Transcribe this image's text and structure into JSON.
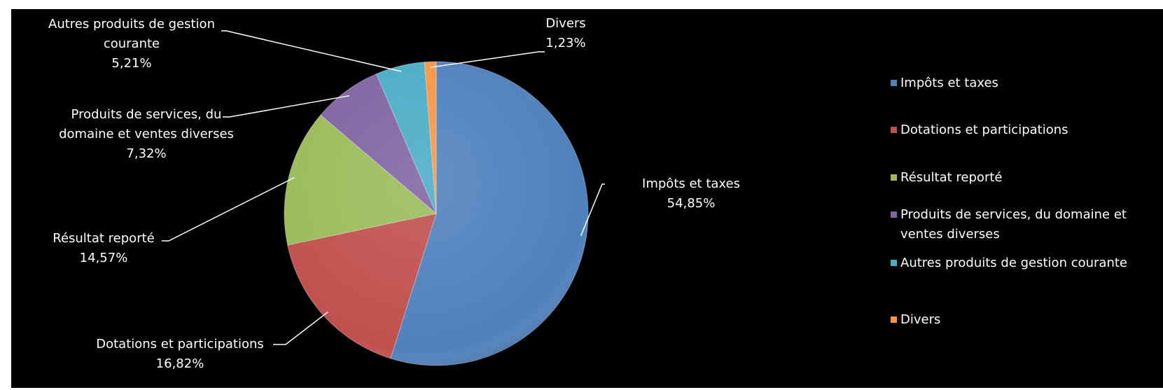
{
  "chart_data": {
    "type": "pie",
    "categories": [
      "Impôts et taxes",
      "Dotations et participations",
      "Résultat reporté",
      "Produits de services, du domaine et ventes diverses",
      "Autres produits de gestion courante",
      "Divers"
    ],
    "values": [
      54.85,
      16.82,
      14.57,
      7.32,
      5.21,
      1.23
    ],
    "value_labels": [
      "54,85%",
      "16,82%",
      "14,57%",
      "7,32%",
      "5,21%",
      "1,23%"
    ],
    "colors": [
      "#4f81bd",
      "#c0504d",
      "#9bbb59",
      "#8064a2",
      "#4bacc6",
      "#f79646"
    ],
    "legend": "right"
  }
}
